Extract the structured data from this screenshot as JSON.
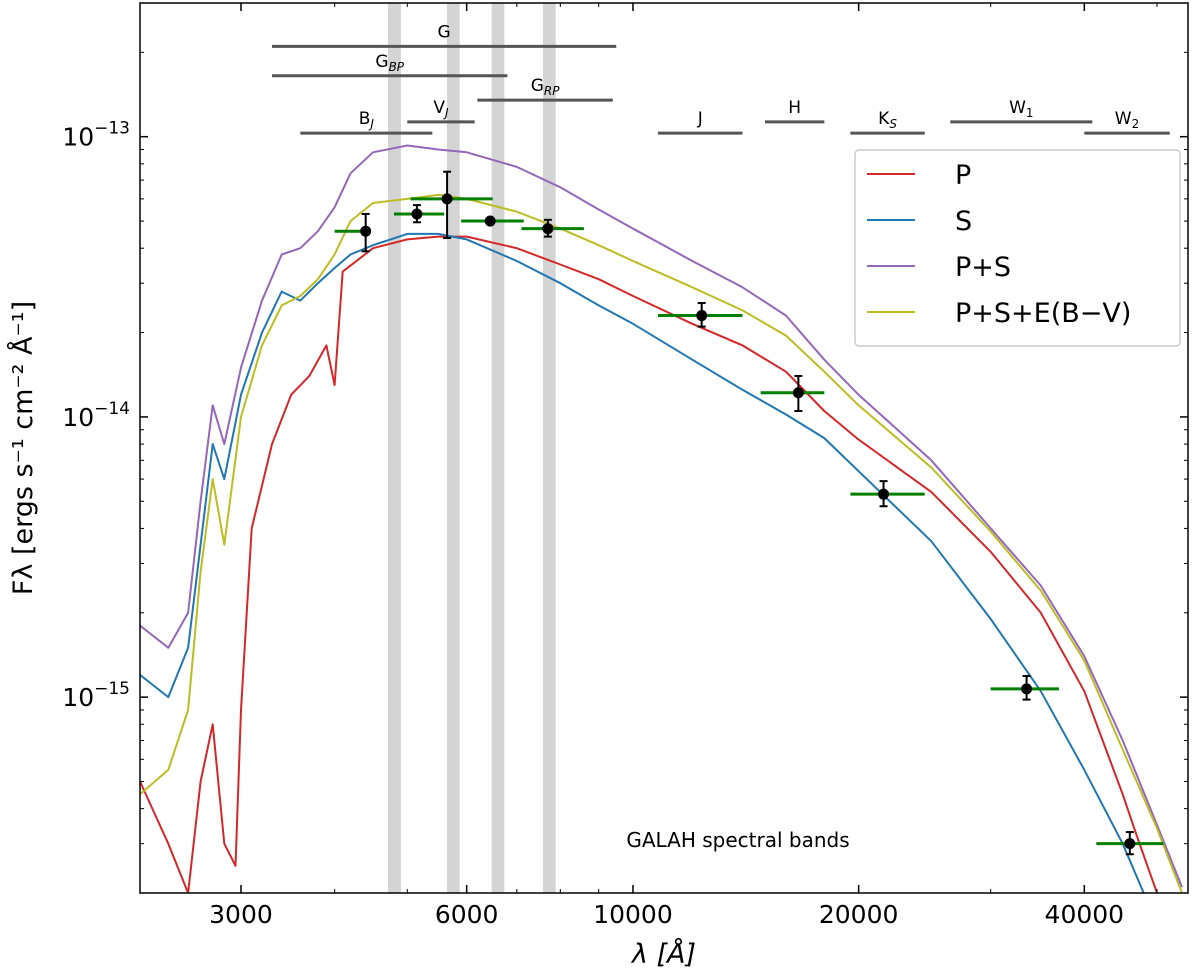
{
  "chart_data": {
    "type": "line",
    "xscale": "log",
    "yscale": "log",
    "xlim": [
      2200,
      55000
    ],
    "ylim": [
      2e-16,
      3e-13
    ],
    "xlabel": "λ [Å]",
    "ylabel": "Fλ [ergs s⁻¹ cm⁻² Å⁻¹]",
    "x_ticks": [
      {
        "value": 3000,
        "label": "3000"
      },
      {
        "value": 6000,
        "label": "6000"
      },
      {
        "value": 10000,
        "label": "10000"
      },
      {
        "value": 20000,
        "label": "20000"
      },
      {
        "value": 40000,
        "label": "40000"
      }
    ],
    "y_ticks": [
      {
        "value": 1e-13,
        "base": "10",
        "exp": "−13"
      },
      {
        "value": 1e-14,
        "base": "10",
        "exp": "−14"
      },
      {
        "value": 1e-15,
        "base": "10",
        "exp": "−15"
      }
    ],
    "series": [
      {
        "name": "P",
        "color": "#d62728",
        "points": [
          [
            2200,
            5e-16
          ],
          [
            2400,
            3e-16
          ],
          [
            2550,
            2e-16
          ],
          [
            2650,
            5e-16
          ],
          [
            2750,
            8e-16
          ],
          [
            2850,
            3e-16
          ],
          [
            2950,
            2.5e-16
          ],
          [
            3000,
            9e-16
          ],
          [
            3100,
            4e-15
          ],
          [
            3300,
            8e-15
          ],
          [
            3500,
            1.2e-14
          ],
          [
            3700,
            1.4e-14
          ],
          [
            3900,
            1.8e-14
          ],
          [
            4000,
            1.3e-14
          ],
          [
            4100,
            3.3e-14
          ],
          [
            4500,
            4e-14
          ],
          [
            5000,
            4.3e-14
          ],
          [
            5500,
            4.4e-14
          ],
          [
            6000,
            4.4e-14
          ],
          [
            7000,
            4e-14
          ],
          [
            8000,
            3.5e-14
          ],
          [
            9000,
            3.1e-14
          ],
          [
            10000,
            2.7e-14
          ],
          [
            12000,
            2.15e-14
          ],
          [
            14000,
            1.8e-14
          ],
          [
            16000,
            1.45e-14
          ],
          [
            18000,
            1.05e-14
          ],
          [
            20000,
            8.3e-15
          ],
          [
            25000,
            5.4e-15
          ],
          [
            30000,
            3.3e-15
          ],
          [
            35000,
            2e-15
          ],
          [
            40000,
            1.05e-15
          ],
          [
            45000,
            4.5e-16
          ],
          [
            47000,
            3.2e-16
          ],
          [
            50000,
            2e-16
          ]
        ]
      },
      {
        "name": "S",
        "color": "#1f77b4",
        "points": [
          [
            2200,
            1.2e-15
          ],
          [
            2400,
            1e-15
          ],
          [
            2550,
            1.5e-15
          ],
          [
            2650,
            3.5e-15
          ],
          [
            2750,
            8e-15
          ],
          [
            2850,
            6e-15
          ],
          [
            3000,
            1.2e-14
          ],
          [
            3200,
            2e-14
          ],
          [
            3400,
            2.8e-14
          ],
          [
            3600,
            2.6e-14
          ],
          [
            3800,
            3e-14
          ],
          [
            4000,
            3.4e-14
          ],
          [
            4200,
            3.8e-14
          ],
          [
            4500,
            4.1e-14
          ],
          [
            5000,
            4.5e-14
          ],
          [
            5500,
            4.5e-14
          ],
          [
            6000,
            4.3e-14
          ],
          [
            7000,
            3.6e-14
          ],
          [
            8000,
            3e-14
          ],
          [
            9000,
            2.5e-14
          ],
          [
            10000,
            2.15e-14
          ],
          [
            12000,
            1.6e-14
          ],
          [
            14000,
            1.25e-14
          ],
          [
            16000,
            1.02e-14
          ],
          [
            18000,
            8.4e-15
          ],
          [
            20000,
            6.4e-15
          ],
          [
            25000,
            3.6e-15
          ],
          [
            30000,
            1.9e-15
          ],
          [
            35000,
            1.05e-15
          ],
          [
            40000,
            5.5e-16
          ],
          [
            45000,
            3e-16
          ],
          [
            48000,
            2e-16
          ]
        ]
      },
      {
        "name": "P+S",
        "color": "#9467bd",
        "points": [
          [
            2200,
            1.8e-15
          ],
          [
            2400,
            1.5e-15
          ],
          [
            2550,
            2e-15
          ],
          [
            2650,
            5e-15
          ],
          [
            2750,
            1.1e-14
          ],
          [
            2850,
            8e-15
          ],
          [
            3000,
            1.5e-14
          ],
          [
            3200,
            2.6e-14
          ],
          [
            3400,
            3.8e-14
          ],
          [
            3600,
            4e-14
          ],
          [
            3800,
            4.6e-14
          ],
          [
            4000,
            5.6e-14
          ],
          [
            4200,
            7.4e-14
          ],
          [
            4500,
            8.8e-14
          ],
          [
            5000,
            9.3e-14
          ],
          [
            5500,
            9e-14
          ],
          [
            6000,
            8.8e-14
          ],
          [
            7000,
            7.8e-14
          ],
          [
            8000,
            6.6e-14
          ],
          [
            9000,
            5.5e-14
          ],
          [
            10000,
            4.7e-14
          ],
          [
            12000,
            3.6e-14
          ],
          [
            14000,
            2.9e-14
          ],
          [
            16000,
            2.3e-14
          ],
          [
            18000,
            1.6e-14
          ],
          [
            20000,
            1.2e-14
          ],
          [
            25000,
            7e-15
          ],
          [
            30000,
            4e-15
          ],
          [
            35000,
            2.5e-15
          ],
          [
            40000,
            1.4e-15
          ],
          [
            45000,
            7e-16
          ],
          [
            50000,
            3.5e-16
          ],
          [
            54000,
            2.1e-16
          ]
        ]
      },
      {
        "name": "P+S+E(B−V)",
        "color": "#bcbd22",
        "points": [
          [
            2200,
            4.5e-16
          ],
          [
            2400,
            5.5e-16
          ],
          [
            2550,
            9e-16
          ],
          [
            2650,
            2.8e-15
          ],
          [
            2750,
            6e-15
          ],
          [
            2850,
            3.5e-15
          ],
          [
            3000,
            1e-14
          ],
          [
            3200,
            1.8e-14
          ],
          [
            3400,
            2.5e-14
          ],
          [
            3600,
            2.7e-14
          ],
          [
            3800,
            3.1e-14
          ],
          [
            4000,
            3.8e-14
          ],
          [
            4200,
            5e-14
          ],
          [
            4500,
            5.8e-14
          ],
          [
            5000,
            6e-14
          ],
          [
            5500,
            6.2e-14
          ],
          [
            6000,
            6e-14
          ],
          [
            7000,
            5.4e-14
          ],
          [
            8000,
            4.7e-14
          ],
          [
            9000,
            4.1e-14
          ],
          [
            10000,
            3.6e-14
          ],
          [
            12000,
            2.9e-14
          ],
          [
            14000,
            2.4e-14
          ],
          [
            16000,
            1.95e-14
          ],
          [
            18000,
            1.45e-14
          ],
          [
            20000,
            1.1e-14
          ],
          [
            25000,
            6.6e-15
          ],
          [
            30000,
            3.9e-15
          ],
          [
            35000,
            2.4e-15
          ],
          [
            40000,
            1.35e-15
          ],
          [
            45000,
            6.5e-16
          ],
          [
            50000,
            3.4e-16
          ],
          [
            54000,
            2e-16
          ]
        ]
      }
    ],
    "photometry": [
      {
        "x": 4400,
        "y": 4.6e-14,
        "yerr_lo": 3.9e-14,
        "yerr_hi": 5.3e-14,
        "xerr_lo": 4000,
        "xerr_hi": 4400
      },
      {
        "x": 5150,
        "y": 5.3e-14,
        "yerr_lo": 4.95e-14,
        "yerr_hi": 5.7e-14,
        "xerr_lo": 4800,
        "xerr_hi": 5600
      },
      {
        "x": 5650,
        "y": 6e-14,
        "yerr_lo": 4.35e-14,
        "yerr_hi": 7.5e-14,
        "xerr_lo": 5050,
        "xerr_hi": 6500
      },
      {
        "x": 6450,
        "y": 5e-14,
        "yerr_lo": 5e-14,
        "yerr_hi": 5e-14,
        "xerr_lo": 5900,
        "xerr_hi": 7150
      },
      {
        "x": 7700,
        "y": 4.7e-14,
        "yerr_lo": 4.4e-14,
        "yerr_hi": 5.05e-14,
        "xerr_lo": 7100,
        "xerr_hi": 8600
      },
      {
        "x": 12350,
        "y": 2.3e-14,
        "yerr_lo": 2.1e-14,
        "yerr_hi": 2.55e-14,
        "xerr_lo": 10800,
        "xerr_hi": 14000
      },
      {
        "x": 16620,
        "y": 1.22e-14,
        "yerr_lo": 1.05e-14,
        "yerr_hi": 1.4e-14,
        "xerr_lo": 14800,
        "xerr_hi": 18000
      },
      {
        "x": 21590,
        "y": 5.3e-15,
        "yerr_lo": 4.8e-15,
        "yerr_hi": 5.9e-15,
        "xerr_lo": 19500,
        "xerr_hi": 24500
      },
      {
        "x": 33500,
        "y": 1.07e-15,
        "yerr_lo": 9.8e-16,
        "yerr_hi": 1.19e-15,
        "xerr_lo": 30000,
        "xerr_hi": 37000
      },
      {
        "x": 46000,
        "y": 3e-16,
        "yerr_lo": 2.75e-16,
        "yerr_hi": 3.3e-16,
        "xerr_lo": 41500,
        "xerr_hi": 51000
      }
    ],
    "filter_bands": [
      {
        "label": "G",
        "sub": "",
        "x0": 3300,
        "x1": 9500,
        "y": 2.1e-13
      },
      {
        "label": "G",
        "sub": "BP",
        "x0": 3300,
        "x1": 6800,
        "y": 1.65e-13
      },
      {
        "label": "G",
        "sub": "RP",
        "x0": 6200,
        "x1": 9400,
        "y": 1.35e-13
      },
      {
        "label": "B",
        "sub": "J",
        "x0": 3600,
        "x1": 5400,
        "y": 1.03e-13
      },
      {
        "label": "V",
        "sub": "J",
        "x0": 5000,
        "x1": 6150,
        "y": 1.13e-13
      },
      {
        "label": "J",
        "sub": "",
        "x0": 10800,
        "x1": 14000,
        "y": 1.03e-13
      },
      {
        "label": "H",
        "sub": "",
        "x0": 15000,
        "x1": 18000,
        "y": 1.13e-13
      },
      {
        "label": "K",
        "sub": "S",
        "x0": 19500,
        "x1": 24500,
        "y": 1.03e-13
      },
      {
        "label": "W",
        "sub": "1",
        "x0": 26500,
        "x1": 41000,
        "y": 1.13e-13
      },
      {
        "label": "W",
        "sub": "2",
        "x0": 40000,
        "x1": 52000,
        "y": 1.03e-13
      }
    ],
    "galah_bands": [
      [
        4713,
        4903
      ],
      [
        5648,
        5873
      ],
      [
        6478,
        6737
      ],
      [
        7585,
        7887
      ]
    ],
    "annotation": "GALAH spectral bands",
    "legend_position": "right",
    "errorbar_color": "#008000",
    "point_color": "#000000"
  }
}
